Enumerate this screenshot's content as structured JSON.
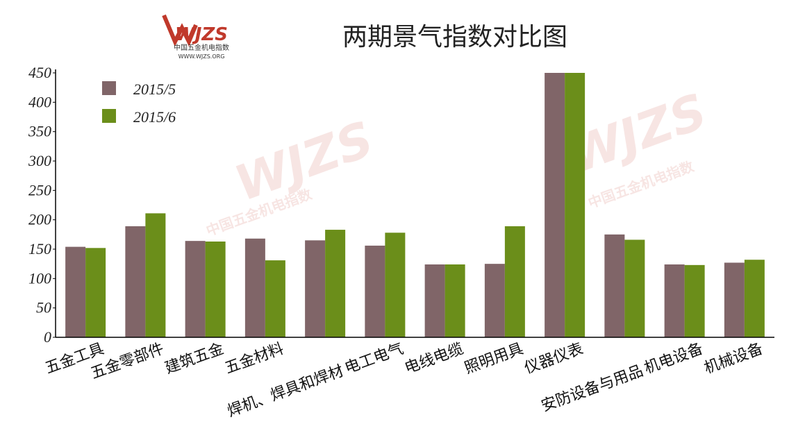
{
  "chart_data": {
    "type": "bar",
    "title": "两期景气指数对比图",
    "logo": {
      "mark": "WJZS",
      "name": "中国五金机电指数",
      "site": "WWW.WJZS.ORG"
    },
    "categories": [
      "五金工具",
      "五金零部件",
      "建筑五金",
      "五金材料",
      "焊机、焊具和焊材",
      "电工电气",
      "电线电缆",
      "照明用具",
      "仪器仪表",
      "安防设备与用品",
      "机电设备",
      "机械设备"
    ],
    "series": [
      {
        "name": "2015/5",
        "color": "#806568",
        "values": [
          154,
          189,
          164,
          168,
          165,
          156,
          124,
          125,
          450,
          175,
          124,
          127
        ]
      },
      {
        "name": "2015/6",
        "color": "#6b8e1a",
        "values": [
          152,
          211,
          163,
          131,
          183,
          178,
          124,
          189,
          450,
          166,
          123,
          132
        ]
      }
    ],
    "ylim": [
      0,
      450
    ],
    "yticks": [
      0,
      50,
      100,
      150,
      200,
      250,
      300,
      350,
      400,
      450
    ],
    "legend": "top-left"
  }
}
